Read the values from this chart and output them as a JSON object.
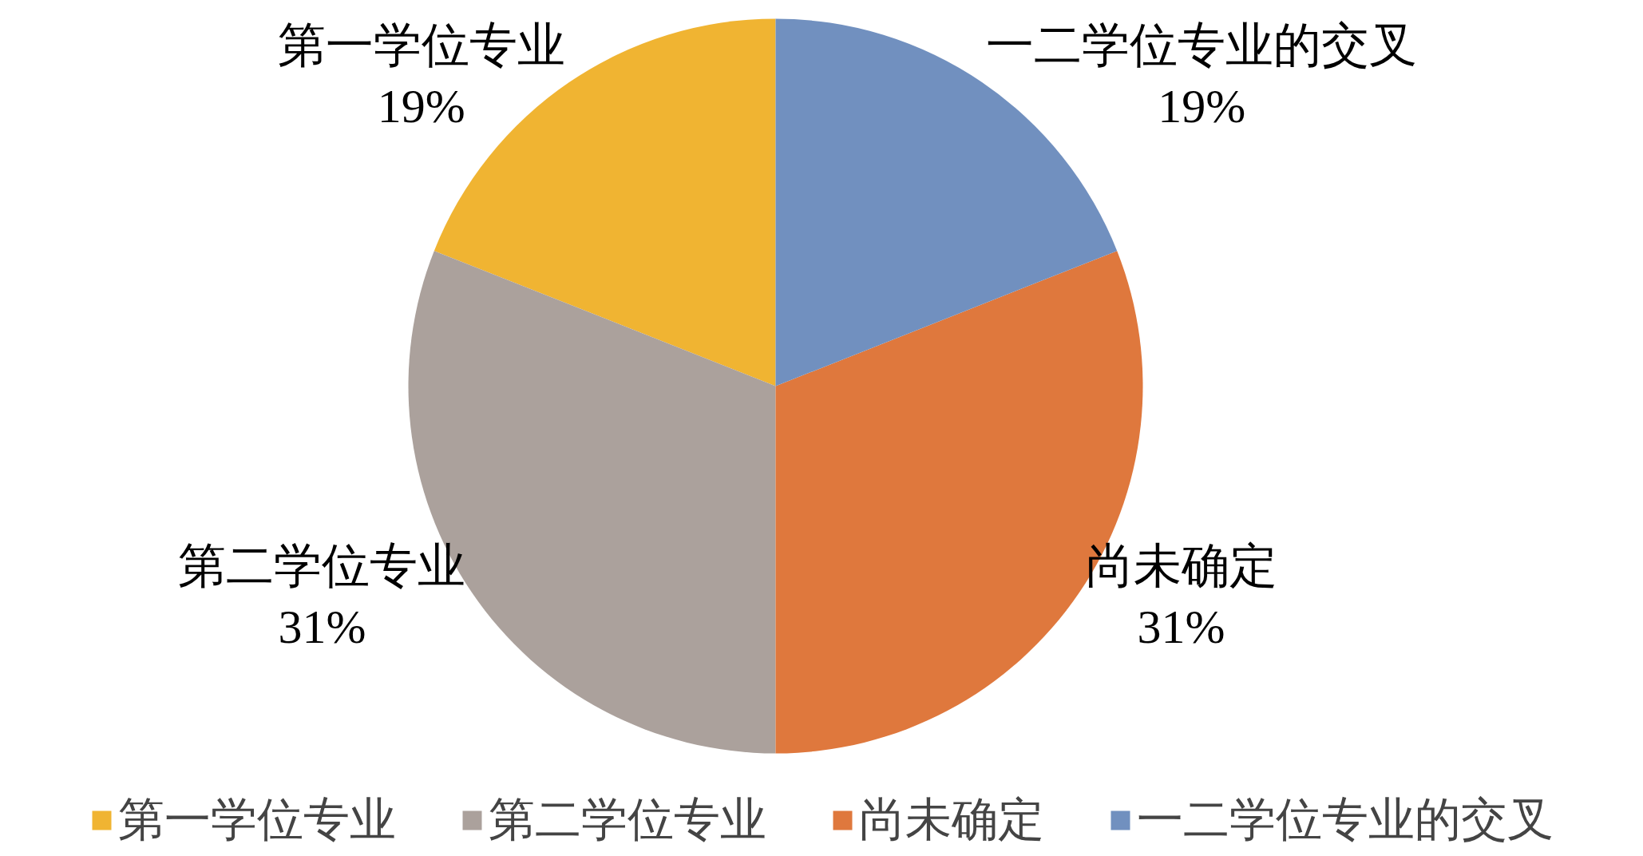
{
  "chart_data": {
    "type": "pie",
    "categories": [
      "第一学位专业",
      "第二学位专业",
      "尚未确定",
      "一二学位专业的交叉"
    ],
    "values": [
      19,
      31,
      31,
      19
    ],
    "colors": [
      "#f0b432",
      "#aba19c",
      "#df783d",
      "#7190bf"
    ],
    "value_labels": [
      "19%",
      "31%",
      "31%",
      "19%"
    ],
    "legend": "bottom"
  }
}
